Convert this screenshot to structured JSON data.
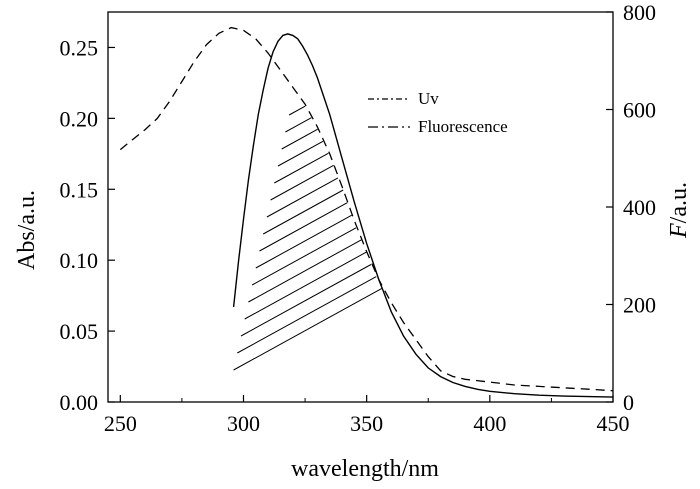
{
  "chart_data": {
    "type": "line",
    "xlabel": "wavelength/nm",
    "ylabel_left": "Abs/a.u.",
    "ylabel_right_italic": "F",
    "ylabel_right_rest": "/a.u.",
    "xlim": [
      245,
      450
    ],
    "ylim_left": [
      0.0,
      0.275
    ],
    "ylim_right": [
      0,
      800
    ],
    "x_ticks": [
      250,
      300,
      350,
      400,
      450
    ],
    "y_left_ticks": [
      "0.00",
      "0.05",
      "0.10",
      "0.15",
      "0.20",
      "0.25"
    ],
    "y_left_tick_values": [
      0.0,
      0.05,
      0.1,
      0.15,
      0.2,
      0.25
    ],
    "y_right_ticks": [
      0,
      200,
      400,
      600,
      800
    ],
    "legend": [
      "Uv",
      "Fluorescence"
    ],
    "series": [
      {
        "name": "Uv",
        "axis": "left",
        "style": "dashed",
        "x": [
          250,
          255,
          260,
          265,
          270,
          275,
          280,
          285,
          290,
          295,
          300,
          305,
          310,
          315,
          320,
          325,
          330,
          335,
          340,
          345,
          350,
          355,
          360,
          365,
          370,
          375,
          380,
          385,
          390,
          400,
          410,
          420,
          430,
          440,
          450
        ],
        "y": [
          0.178,
          0.185,
          0.192,
          0.2,
          0.212,
          0.226,
          0.24,
          0.252,
          0.26,
          0.264,
          0.262,
          0.256,
          0.246,
          0.234,
          0.222,
          0.21,
          0.194,
          0.175,
          0.152,
          0.128,
          0.106,
          0.086,
          0.07,
          0.056,
          0.044,
          0.032,
          0.022,
          0.018,
          0.016,
          0.014,
          0.012,
          0.011,
          0.01,
          0.009,
          0.008
        ]
      },
      {
        "name": "Fluorescence",
        "axis": "right",
        "style": "solid",
        "x": [
          296,
          298,
          300,
          302,
          304,
          306,
          308,
          310,
          312,
          314,
          316,
          318,
          320,
          322,
          324,
          326,
          328,
          330,
          335,
          340,
          345,
          350,
          355,
          360,
          365,
          370,
          375,
          380,
          385,
          390,
          395,
          400,
          410,
          420,
          430,
          440,
          450
        ],
        "y": [
          195,
          290,
          375,
          455,
          525,
          590,
          640,
          685,
          718,
          740,
          752,
          755,
          752,
          745,
          730,
          712,
          690,
          665,
          590,
          500,
          410,
          325,
          250,
          185,
          135,
          98,
          70,
          52,
          40,
          32,
          26,
          22,
          17,
          14,
          12,
          11,
          10
        ]
      }
    ]
  }
}
